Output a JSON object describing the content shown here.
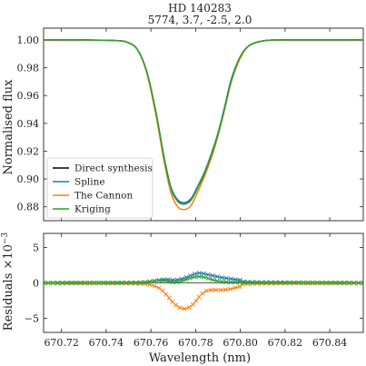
{
  "chart_data": [
    {
      "type": "line",
      "title": "HD 140283",
      "subtitle": "5774, 3.7, -2.5, 2.0",
      "xlabel": "",
      "ylabel": "Normalised flux",
      "xlim": [
        670.712,
        670.855
      ],
      "ylim": [
        0.87,
        1.0085
      ],
      "x_ticks": [
        "670.72",
        "670.74",
        "670.76",
        "670.78",
        "670.80",
        "670.82",
        "670.84"
      ],
      "y_ticks": [
        "0.88",
        "0.90",
        "0.92",
        "0.94",
        "0.96",
        "0.98",
        "1.00"
      ],
      "legend_position": "lower-left",
      "series": [
        {
          "name": "Direct synthesis",
          "color": "#000000",
          "x": [
            670.712,
            670.73,
            670.745,
            670.75,
            670.754,
            670.758,
            670.762,
            670.766,
            670.769,
            670.772,
            670.775,
            670.778,
            670.781,
            670.784,
            670.787,
            670.79,
            670.793,
            670.796,
            670.8,
            670.804,
            670.81,
            670.82,
            670.855
          ],
          "y": [
            1.0,
            1.0,
            0.9995,
            0.998,
            0.993,
            0.978,
            0.95,
            0.914,
            0.893,
            0.884,
            0.882,
            0.885,
            0.894,
            0.904,
            0.917,
            0.932,
            0.951,
            0.971,
            0.988,
            0.996,
            0.9993,
            1.0,
            1.0
          ]
        },
        {
          "name": "Spline",
          "color": "#1f77b4",
          "x": [
            670.712,
            670.73,
            670.745,
            670.75,
            670.754,
            670.758,
            670.762,
            670.766,
            670.769,
            670.772,
            670.775,
            670.778,
            670.781,
            670.784,
            670.787,
            670.79,
            670.793,
            670.796,
            670.8,
            670.804,
            670.81,
            670.82,
            670.855
          ],
          "y": [
            1.0,
            1.0,
            0.9995,
            0.998,
            0.993,
            0.978,
            0.95,
            0.915,
            0.894,
            0.885,
            0.883,
            0.886,
            0.895,
            0.905,
            0.918,
            0.933,
            0.952,
            0.972,
            0.988,
            0.996,
            0.9993,
            1.0,
            1.0
          ]
        },
        {
          "name": "The Cannon",
          "color": "#ff7f0e",
          "x": [
            670.712,
            670.73,
            670.745,
            670.75,
            670.754,
            670.758,
            670.762,
            670.766,
            670.769,
            670.772,
            670.775,
            670.778,
            670.781,
            670.784,
            670.787,
            670.79,
            670.793,
            670.796,
            670.8,
            670.804,
            670.81,
            670.82,
            670.855
          ],
          "y": [
            1.0,
            1.0,
            0.9995,
            0.998,
            0.993,
            0.977,
            0.948,
            0.912,
            0.89,
            0.88,
            0.878,
            0.881,
            0.891,
            0.902,
            0.915,
            0.931,
            0.95,
            0.97,
            0.987,
            0.996,
            0.9993,
            1.0,
            1.0
          ]
        },
        {
          "name": "Kriging",
          "color": "#2ca02c",
          "x": [
            670.712,
            670.73,
            670.745,
            670.75,
            670.754,
            670.758,
            670.762,
            670.766,
            670.769,
            670.772,
            670.775,
            670.778,
            670.781,
            670.784,
            670.787,
            670.79,
            670.793,
            670.796,
            670.8,
            670.804,
            670.81,
            670.82,
            670.855
          ],
          "y": [
            1.0,
            1.0,
            0.9995,
            0.998,
            0.993,
            0.978,
            0.95,
            0.914,
            0.893,
            0.884,
            0.882,
            0.885,
            0.894,
            0.904,
            0.917,
            0.932,
            0.951,
            0.971,
            0.988,
            0.996,
            0.9993,
            1.0,
            1.0
          ]
        }
      ]
    },
    {
      "type": "line",
      "xlabel": "Wavelength (nm)",
      "ylabel": "Residuals ×10",
      "ylabel_exponent": "−3",
      "xlim": [
        670.712,
        670.855
      ],
      "ylim": [
        -7,
        7
      ],
      "x_ticks": [
        "670.72",
        "670.74",
        "670.76",
        "670.78",
        "670.80",
        "670.82",
        "670.84"
      ],
      "y_ticks": [
        "−5",
        "0",
        "5"
      ],
      "zero_line": true,
      "marker": "x",
      "series": [
        {
          "name": "Spline",
          "color": "#1f77b4",
          "x": [
            670.712,
            670.74,
            670.755,
            670.76,
            670.764,
            670.767,
            670.77,
            670.773,
            670.776,
            670.779,
            670.782,
            670.785,
            670.788,
            670.791,
            670.795,
            670.8,
            670.806,
            670.855
          ],
          "y": [
            0,
            0,
            0.05,
            0.2,
            0.4,
            0.5,
            0.4,
            0.5,
            0.8,
            1.2,
            1.4,
            1.2,
            1.0,
            0.8,
            0.6,
            0.4,
            0.1,
            0
          ]
        },
        {
          "name": "The Cannon",
          "color": "#ff7f0e",
          "x": [
            670.712,
            670.74,
            670.755,
            670.76,
            670.764,
            670.767,
            670.77,
            670.773,
            670.776,
            670.779,
            670.782,
            670.785,
            670.788,
            670.791,
            670.795,
            670.8,
            670.806,
            670.855
          ],
          "y": [
            0,
            0,
            -0.1,
            -0.3,
            -0.8,
            -1.7,
            -2.8,
            -3.5,
            -3.6,
            -3.0,
            -1.8,
            -1.1,
            -1.0,
            -1.0,
            -0.9,
            -0.5,
            -0.1,
            0
          ]
        },
        {
          "name": "Kriging",
          "color": "#2ca02c",
          "x": [
            670.712,
            670.74,
            670.755,
            670.76,
            670.764,
            670.767,
            670.77,
            670.773,
            670.776,
            670.779,
            670.782,
            670.785,
            670.788,
            670.791,
            670.795,
            670.8,
            670.806,
            670.855
          ],
          "y": [
            0,
            0,
            0.05,
            0.2,
            0.35,
            0.25,
            0.1,
            0.2,
            0.5,
            0.8,
            0.9,
            0.7,
            0.4,
            0.2,
            0.1,
            0.1,
            0.05,
            0
          ]
        }
      ]
    }
  ]
}
